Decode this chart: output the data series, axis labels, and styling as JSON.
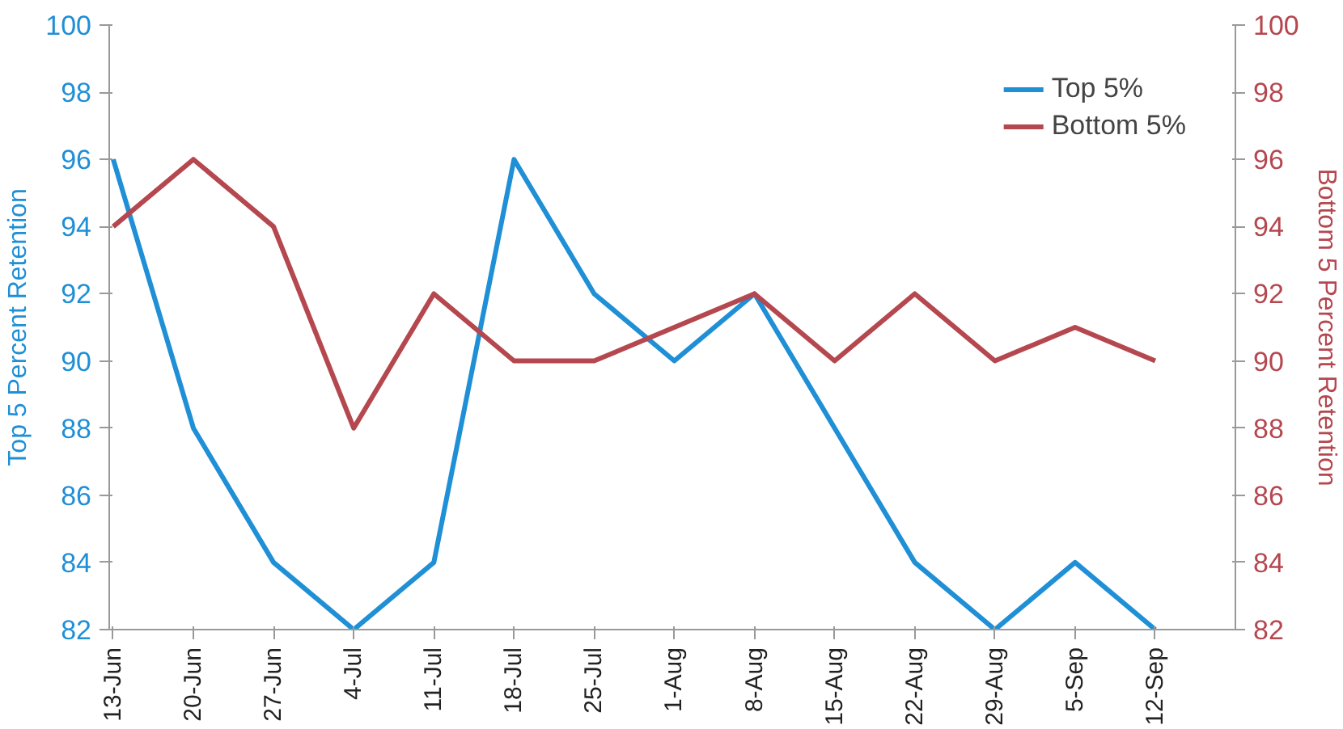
{
  "chart_data": {
    "type": "line",
    "ylabel": "Top 5 Percent Retention",
    "y2label": "Bottom 5 Percent Retention",
    "categories": [
      "13-Jun",
      "20-Jun",
      "27-Jun",
      "4-Jul",
      "11-Jul",
      "18-Jul",
      "25-Jul",
      "1-Aug",
      "8-Aug",
      "15-Aug",
      "22-Aug",
      "29-Aug",
      "5-Sep",
      "12-Sep"
    ],
    "series": [
      {
        "name": "Top 5%",
        "color": "#1f8fd6",
        "values": [
          96,
          88,
          84,
          82,
          84,
          96,
          92,
          90,
          92,
          88,
          84,
          82,
          84,
          82
        ]
      },
      {
        "name": "Bottom 5%",
        "color": "#b5474f",
        "axis": "y2",
        "values": [
          94,
          96,
          94,
          88,
          92,
          90,
          90,
          91,
          92,
          90,
          92,
          90,
          91,
          90
        ]
      }
    ],
    "ylim": [
      82,
      100
    ],
    "yticks": [
      82,
      84,
      86,
      88,
      90,
      92,
      94,
      96,
      98,
      100
    ],
    "y2lim": [
      82,
      100
    ],
    "y2ticks": [
      82,
      84,
      86,
      88,
      90,
      92,
      94,
      96,
      98,
      100
    ],
    "grid": false,
    "legend": "top right",
    "marker": "none",
    "line_style": "solid"
  }
}
